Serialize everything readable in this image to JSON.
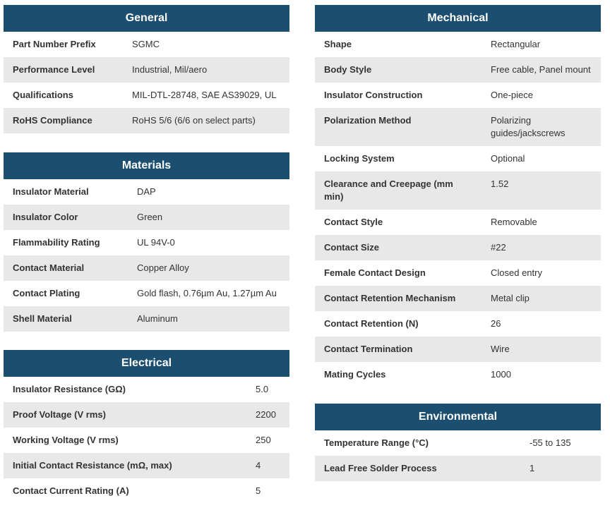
{
  "general": {
    "title": "General",
    "rows": [
      [
        "Part Number Prefix",
        "SGMC"
      ],
      [
        "Performance Level",
        "Industrial, Mil/aero"
      ],
      [
        "Qualifications",
        "MIL-DTL-28748, SAE AS39029, UL"
      ],
      [
        "RoHS Compliance",
        "RoHS 5/6 (6/6 on select parts)"
      ]
    ]
  },
  "materials": {
    "title": "Materials",
    "rows": [
      [
        "Insulator Material",
        "DAP"
      ],
      [
        "Insulator Color",
        "Green"
      ],
      [
        "Flammability Rating",
        "UL 94V-0"
      ],
      [
        "Contact Material",
        "Copper Alloy"
      ],
      [
        "Contact Plating",
        "Gold flash, 0.76µm Au, 1.27µm Au"
      ],
      [
        "Shell Material",
        "Aluminum"
      ]
    ]
  },
  "electrical": {
    "title": "Electrical",
    "rows": [
      [
        "Insulator Resistance (GΩ)",
        "5.0"
      ],
      [
        "Proof Voltage (V rms)",
        "2200"
      ],
      [
        "Working Voltage (V rms)",
        "250"
      ],
      [
        "Initial Contact Resistance (mΩ, max)",
        "4"
      ],
      [
        "Contact Current Rating (A)",
        "5"
      ]
    ]
  },
  "mechanical": {
    "title": "Mechanical",
    "rows": [
      [
        "Shape",
        "Rectangular"
      ],
      [
        "Body Style",
        "Free cable, Panel mount"
      ],
      [
        "Insulator Construction",
        "One-piece"
      ],
      [
        "Polarization Method",
        "Polarizing guides/jackscrews"
      ],
      [
        "Locking System",
        "Optional"
      ],
      [
        "Clearance and Creepage (mm min)",
        "1.52"
      ],
      [
        "Contact Style",
        "Removable"
      ],
      [
        "Contact Size",
        "#22"
      ],
      [
        "Female Contact Design",
        "Closed entry"
      ],
      [
        "Contact Retention Mechanism",
        "Metal clip"
      ],
      [
        "Contact Retention (N)",
        "26"
      ],
      [
        "Contact Termination",
        "Wire"
      ],
      [
        "Mating Cycles",
        "1000"
      ]
    ]
  },
  "environmental": {
    "title": "Environmental",
    "rows": [
      [
        "Temperature Range (°C)",
        "-55 to 135"
      ],
      [
        "Lead Free Solder Process",
        "1"
      ]
    ]
  },
  "colors": {
    "header": "#1b4e6f",
    "stripe": "#e8e8e8"
  }
}
